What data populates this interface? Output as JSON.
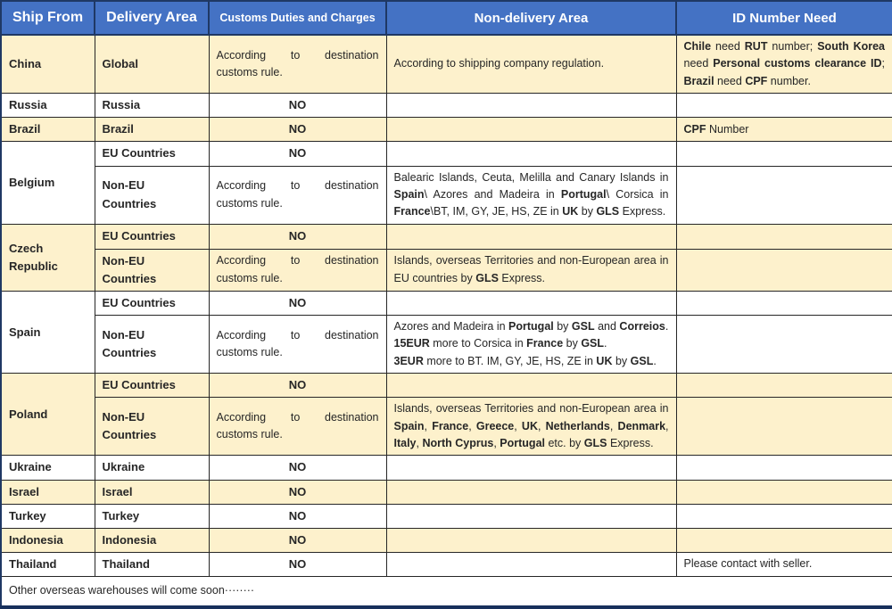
{
  "header": {
    "cols": [
      "Ship From",
      "Delivery Area",
      "Customs Duties and Charges",
      "Non-delivery Area",
      "ID Number Need"
    ]
  },
  "labels": {
    "no": "NO",
    "eu": "EU Countries",
    "non_eu": "Non-EU Countries",
    "customs_rule": "According to destination customs rule."
  },
  "rows": {
    "china": {
      "ship": "China",
      "area": "Global",
      "customs": "According to destination customs rule.",
      "nondelivery": "According to shipping company regulation.",
      "id": [
        {
          "t": "Chile",
          "b": true
        },
        {
          "t": " need "
        },
        {
          "t": "RUT",
          "b": true
        },
        {
          "t": " number; "
        },
        {
          "t": "South Korea",
          "b": true
        },
        {
          "t": " need "
        },
        {
          "t": "Personal customs clearance ID",
          "b": true
        },
        {
          "t": "; "
        },
        {
          "t": "Brazil",
          "b": true
        },
        {
          "t": " need "
        },
        {
          "t": "CPF",
          "b": true
        },
        {
          "t": " number."
        }
      ]
    },
    "russia": {
      "ship": "Russia",
      "area": "Russia",
      "customs": "NO"
    },
    "brazil": {
      "ship": "Brazil",
      "area": "Brazil",
      "customs": "NO",
      "id": [
        {
          "t": "CPF",
          "b": true
        },
        {
          "t": " Number"
        }
      ]
    },
    "belgium": {
      "ship": "Belgium",
      "nondelivery": [
        {
          "t": "Balearic Islands, Ceuta, Melilla and Canary Islands in "
        },
        {
          "t": "Spain",
          "b": true
        },
        {
          "t": "\\ Azores and Madeira in "
        },
        {
          "t": "Portugal",
          "b": true
        },
        {
          "t": "\\ Corsica in "
        },
        {
          "t": "France",
          "b": true
        },
        {
          "t": "\\BT, IM, GY, JE, HS, ZE in "
        },
        {
          "t": "UK",
          "b": true
        },
        {
          "t": " by "
        },
        {
          "t": "GLS",
          "b": true
        },
        {
          "t": " Express."
        }
      ]
    },
    "czech": {
      "ship": "Czech Republic",
      "nondelivery": [
        {
          "t": "Islands, overseas Territories and non-European area in EU countries by "
        },
        {
          "t": "GLS",
          "b": true
        },
        {
          "t": " Express."
        }
      ]
    },
    "spain": {
      "ship": "Spain",
      "nondelivery": [
        {
          "t": "Azores and Madeira in "
        },
        {
          "t": "Portugal",
          "b": true
        },
        {
          "t": " by "
        },
        {
          "t": "GSL",
          "b": true
        },
        {
          "t": " and "
        },
        {
          "t": "Correios",
          "b": true
        },
        {
          "t": ".\n"
        },
        {
          "t": "15EUR",
          "b": true
        },
        {
          "t": " more to Corsica in "
        },
        {
          "t": "France",
          "b": true
        },
        {
          "t": " by "
        },
        {
          "t": "GSL",
          "b": true
        },
        {
          "t": ".\n"
        },
        {
          "t": "3EUR",
          "b": true
        },
        {
          "t": " more to BT. IM, GY, JE, HS, ZE in "
        },
        {
          "t": "UK",
          "b": true
        },
        {
          "t": " by "
        },
        {
          "t": "GSL",
          "b": true
        },
        {
          "t": "."
        }
      ]
    },
    "poland": {
      "ship": "Poland",
      "nondelivery": [
        {
          "t": "Islands, overseas Territories and non-European area in "
        },
        {
          "t": "Spain",
          "b": true
        },
        {
          "t": ", "
        },
        {
          "t": "France",
          "b": true
        },
        {
          "t": ", "
        },
        {
          "t": "Greece",
          "b": true
        },
        {
          "t": ", "
        },
        {
          "t": "UK",
          "b": true
        },
        {
          "t": ", "
        },
        {
          "t": "Netherlands",
          "b": true
        },
        {
          "t": ", "
        },
        {
          "t": "Denmark",
          "b": true
        },
        {
          "t": ", "
        },
        {
          "t": "Italy",
          "b": true
        },
        {
          "t": ", "
        },
        {
          "t": "North Cyprus",
          "b": true
        },
        {
          "t": ", "
        },
        {
          "t": "Portugal",
          "b": true
        },
        {
          "t": " etc. by "
        },
        {
          "t": "GLS",
          "b": true
        },
        {
          "t": " Express."
        }
      ]
    },
    "ukraine": {
      "ship": "Ukraine",
      "area": "Ukraine",
      "customs": "NO"
    },
    "israel": {
      "ship": "Israel",
      "area": "Israel",
      "customs": "NO"
    },
    "turkey": {
      "ship": "Turkey",
      "area": "Turkey",
      "customs": "NO"
    },
    "indonesia": {
      "ship": "Indonesia",
      "area": "Indonesia",
      "customs": "NO"
    },
    "thailand": {
      "ship": "Thailand",
      "area": "Thailand",
      "customs": "NO",
      "id": "Please contact with seller."
    }
  },
  "footer": {
    "text": "Other overseas warehouses will come soon········"
  },
  "colors": {
    "header_bg": "#4472C4",
    "header_border": "#1F3864",
    "row_yellow": "#FDF1CC",
    "row_white": "#FFFFFF",
    "grid_border": "#262626",
    "header_text": "#FFFFFF",
    "body_text": "#262626"
  }
}
